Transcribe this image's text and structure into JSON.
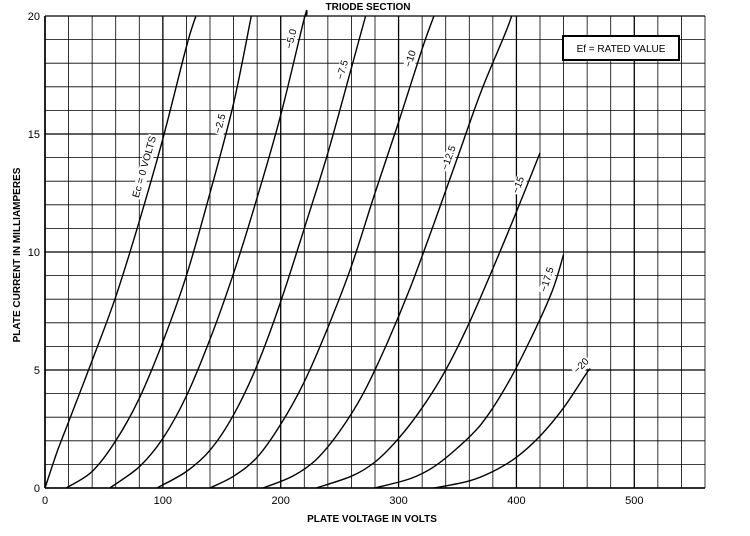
{
  "chart_data": {
    "type": "line",
    "title": "TRIODE SECTION",
    "xlabel": "PLATE VOLTAGE IN VOLTS",
    "ylabel": "PLATE CURRENT IN MILLIAMPERES",
    "xlim": [
      0,
      560
    ],
    "ylim": [
      0,
      20
    ],
    "x_ticks": [
      0,
      100,
      200,
      300,
      400,
      500
    ],
    "y_ticks": [
      0,
      5,
      10,
      15,
      20
    ],
    "grid": true,
    "annotation": "Ef = RATED VALUE",
    "series": [
      {
        "label": "Ec = 0 VOLTS",
        "points": [
          [
            0,
            0
          ],
          [
            10,
            1.5
          ],
          [
            20,
            2.8
          ],
          [
            40,
            5.4
          ],
          [
            60,
            8.1
          ],
          [
            80,
            11.3
          ],
          [
            100,
            14.8
          ],
          [
            120,
            18.7
          ],
          [
            128,
            20
          ]
        ]
      },
      {
        "label": "−2.5",
        "points": [
          [
            18,
            0
          ],
          [
            40,
            0.7
          ],
          [
            60,
            2.0
          ],
          [
            80,
            3.8
          ],
          [
            100,
            6.2
          ],
          [
            120,
            9.0
          ],
          [
            140,
            12.5
          ],
          [
            160,
            16.3
          ],
          [
            175,
            20
          ]
        ]
      },
      {
        "label": "−5.0",
        "points": [
          [
            55,
            0
          ],
          [
            80,
            0.9
          ],
          [
            100,
            2.1
          ],
          [
            120,
            3.9
          ],
          [
            140,
            6.3
          ],
          [
            160,
            9.1
          ],
          [
            180,
            12.3
          ],
          [
            200,
            15.8
          ],
          [
            220,
            19.9
          ],
          [
            222,
            20
          ]
        ]
      },
      {
        "label": "−7.5",
        "points": [
          [
            95,
            0
          ],
          [
            120,
            0.7
          ],
          [
            140,
            1.6
          ],
          [
            160,
            3.1
          ],
          [
            180,
            5.2
          ],
          [
            200,
            7.9
          ],
          [
            220,
            11.0
          ],
          [
            240,
            14.2
          ],
          [
            260,
            17.8
          ],
          [
            272,
            20
          ]
        ]
      },
      {
        "label": "−10",
        "points": [
          [
            140,
            0
          ],
          [
            160,
            0.5
          ],
          [
            180,
            1.3
          ],
          [
            200,
            2.7
          ],
          [
            220,
            4.5
          ],
          [
            240,
            6.8
          ],
          [
            260,
            9.4
          ],
          [
            280,
            12.5
          ],
          [
            300,
            15.5
          ],
          [
            320,
            18.6
          ],
          [
            330,
            20
          ]
        ]
      },
      {
        "label": "−12.5",
        "points": [
          [
            185,
            0
          ],
          [
            210,
            0.5
          ],
          [
            230,
            1.2
          ],
          [
            250,
            2.4
          ],
          [
            270,
            4.0
          ],
          [
            290,
            6.1
          ],
          [
            310,
            8.5
          ],
          [
            330,
            11.2
          ],
          [
            350,
            14.0
          ],
          [
            370,
            16.8
          ],
          [
            390,
            19.2
          ],
          [
            396,
            20
          ]
        ]
      },
      {
        "label": "−15",
        "points": [
          [
            230,
            0
          ],
          [
            260,
            0.5
          ],
          [
            280,
            1.1
          ],
          [
            300,
            2.1
          ],
          [
            320,
            3.4
          ],
          [
            340,
            5.0
          ],
          [
            360,
            7.0
          ],
          [
            380,
            9.3
          ],
          [
            400,
            11.7
          ],
          [
            420,
            14.2
          ]
        ]
      },
      {
        "label": "−17.5",
        "points": [
          [
            280,
            0
          ],
          [
            310,
            0.4
          ],
          [
            330,
            0.9
          ],
          [
            350,
            1.7
          ],
          [
            370,
            2.7
          ],
          [
            390,
            4.2
          ],
          [
            410,
            6.1
          ],
          [
            430,
            8.3
          ],
          [
            440,
            9.9
          ]
        ]
      },
      {
        "label": "−20",
        "points": [
          [
            330,
            0
          ],
          [
            360,
            0.3
          ],
          [
            380,
            0.7
          ],
          [
            400,
            1.3
          ],
          [
            420,
            2.2
          ],
          [
            440,
            3.4
          ],
          [
            460,
            4.9
          ],
          [
            462,
            5.0
          ]
        ]
      }
    ]
  }
}
